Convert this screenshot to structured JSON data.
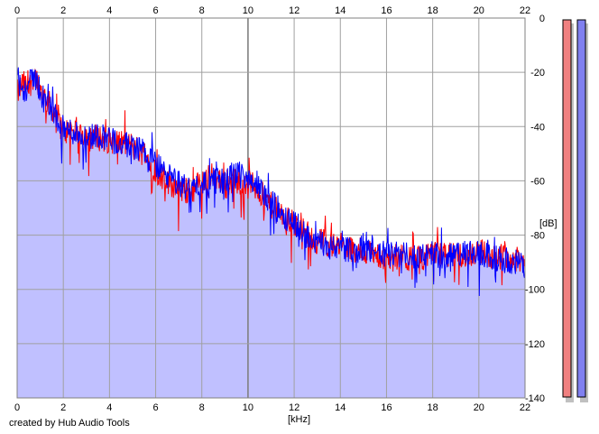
{
  "chart_data": {
    "type": "area",
    "xlabel": "[kHz]",
    "ylabel": "[dB]",
    "xlim": [
      0,
      22
    ],
    "ylim": [
      -140,
      0
    ],
    "x_ticks": [
      0,
      2,
      4,
      6,
      8,
      10,
      12,
      14,
      16,
      18,
      20,
      22
    ],
    "y_ticks": [
      0,
      -20,
      -40,
      -60,
      -80,
      -100,
      -120,
      -140
    ],
    "grid": true,
    "fill_color": "#c0c0ff",
    "series": [
      {
        "color": "#ff0000",
        "x": [
          0,
          0.25,
          0.5,
          0.75,
          1,
          1.25,
          1.5,
          1.75,
          2,
          2.5,
          3,
          3.5,
          4,
          4.5,
          5,
          5.5,
          6,
          6.5,
          7,
          7.5,
          8,
          8.5,
          9,
          9.5,
          10,
          10.5,
          11,
          11.5,
          12,
          12.5,
          13,
          13.5,
          14,
          14.5,
          15,
          15.5,
          16,
          16.5,
          17,
          17.5,
          18,
          18.5,
          19,
          19.5,
          20,
          20.5,
          21,
          21.5,
          22
        ],
        "values": [
          -28,
          -24,
          -26,
          -20,
          -26,
          -30,
          -33,
          -36,
          -42,
          -41,
          -43,
          -44,
          -45,
          -46,
          -47,
          -50,
          -56,
          -60,
          -63,
          -64,
          -60,
          -58,
          -61,
          -60,
          -60,
          -64,
          -69,
          -73,
          -76,
          -79,
          -82,
          -83,
          -84,
          -85,
          -86,
          -87,
          -89,
          -88,
          -89,
          -88,
          -88,
          -87,
          -88,
          -87,
          -86,
          -87,
          -88,
          -89,
          -90
        ]
      },
      {
        "color": "#0000ff",
        "x": [
          0,
          0.25,
          0.5,
          0.75,
          1,
          1.25,
          1.5,
          1.75,
          2,
          2.5,
          3,
          3.5,
          4,
          4.5,
          5,
          5.5,
          6,
          6.5,
          7,
          7.5,
          8,
          8.5,
          9,
          9.5,
          10,
          10.5,
          11,
          11.5,
          12,
          12.5,
          13,
          13.5,
          14,
          14.5,
          15,
          15.5,
          16,
          16.5,
          17,
          17.5,
          18,
          18.5,
          19,
          19.5,
          20,
          20.5,
          21,
          21.5,
          22
        ],
        "values": [
          -22,
          -27,
          -25,
          -21,
          -27,
          -31,
          -34,
          -37,
          -41,
          -42,
          -44,
          -43,
          -44,
          -47,
          -47,
          -49,
          -54,
          -58,
          -61,
          -63,
          -61,
          -60,
          -60,
          -58,
          -58,
          -63,
          -68,
          -72,
          -75,
          -80,
          -83,
          -84,
          -84,
          -86,
          -85,
          -86,
          -87,
          -87,
          -88,
          -87,
          -87,
          -88,
          -87,
          -87,
          -87,
          -88,
          -89,
          -90,
          -91
        ]
      }
    ]
  },
  "meters": {
    "left_color": "#f08080",
    "right_color": "#8080f0"
  },
  "credit": "created by Hub Audio Tools"
}
